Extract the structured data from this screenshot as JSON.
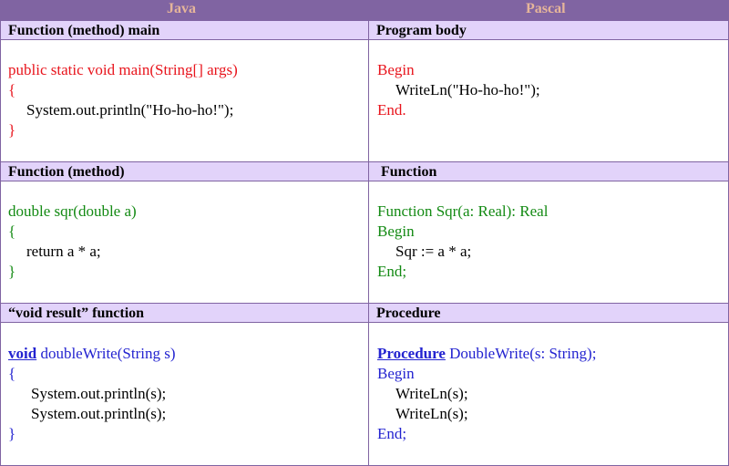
{
  "columns": [
    "Java",
    "Pascal"
  ],
  "colors": {
    "header": "#8064a2",
    "header_text": "#e5b59a",
    "subheader": "#e2d3fa",
    "red": "#e8141c",
    "green": "#138a13",
    "blue": "#2323d0"
  },
  "rows": [
    {
      "java_title": "Function (method) main",
      "pascal_title": "Program body",
      "java": [
        "public static void main(String[] args)",
        "{",
        "System.out.println(\"Ho-ho-ho!\");",
        "}"
      ],
      "pascal": [
        "Begin",
        "WriteLn(\"Ho-ho-ho!\");",
        "End."
      ]
    },
    {
      "java_title": "Function (method)",
      "pascal_title": "Function",
      "java": [
        "double sqr(double a)",
        "{",
        "return a * a;",
        "}"
      ],
      "pascal": [
        "Function Sqr(a: Real): Real",
        "Begin",
        "Sqr := a * a;",
        "End;"
      ]
    },
    {
      "java_title": "“void result” function",
      "pascal_title": "Procedure",
      "java_kw": "void",
      "java_sig": " doubleWrite(String s)",
      "java": [
        "{",
        "System.out.println(s);",
        "System.out.println(s);",
        "}"
      ],
      "pascal_kw": "Procedure",
      "pascal_sig": " DoubleWrite(s: String);",
      "pascal": [
        "Begin",
        "WriteLn(s);",
        "WriteLn(s);",
        "End;"
      ]
    }
  ]
}
